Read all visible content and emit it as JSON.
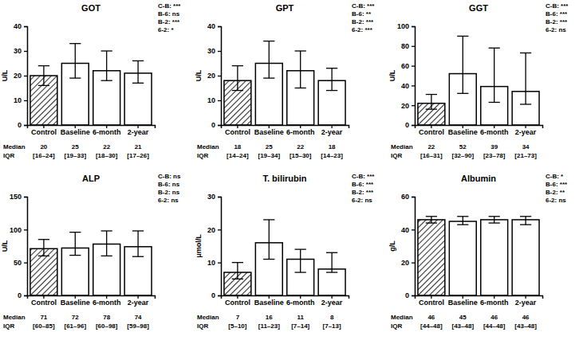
{
  "chart_data": [
    {
      "type": "bar",
      "title": "GOT",
      "y_label": "U/L",
      "categories": [
        "Control",
        "Baseline",
        "6-month",
        "2-year"
      ],
      "values": [
        20,
        25,
        22,
        21
      ],
      "iqr_low": [
        16,
        19,
        18,
        17
      ],
      "iqr_high": [
        24,
        33,
        30,
        26
      ],
      "iqr_labels": [
        "[16–24]",
        "[19–33]",
        "[18–30]",
        "[17–26]"
      ],
      "median_label": "Median",
      "iqr_label": "IQR",
      "annotations": [
        "C-B: ***",
        "B-6: ns",
        "B-2: ***",
        "6-2: *"
      ],
      "colors": [
        "#333333",
        "#ffffff",
        "#ffffff",
        "#ffffff"
      ],
      "ylim": [
        0,
        40
      ],
      "yticks": [
        0,
        10,
        20,
        30,
        40
      ]
    },
    {
      "type": "bar",
      "title": "GPT",
      "y_label": "U/L",
      "categories": [
        "Control",
        "Baseline",
        "6-month",
        "2-year"
      ],
      "values": [
        18,
        25,
        22,
        18
      ],
      "iqr_low": [
        14,
        19,
        15,
        14
      ],
      "iqr_high": [
        24,
        34,
        30,
        23
      ],
      "iqr_labels": [
        "[14–24]",
        "[19–34]",
        "[15–30]",
        "[14–23]"
      ],
      "median_label": "Median",
      "iqr_label": "IQR",
      "annotations": [
        "C-B: ***",
        "B-6: **",
        "B-2: ***",
        "6-2: ***"
      ],
      "colors": [
        "#333333",
        "#ffffff",
        "#ffffff",
        "#ffffff"
      ],
      "ylim": [
        0,
        40
      ],
      "yticks": [
        0,
        10,
        20,
        30,
        40
      ]
    },
    {
      "type": "bar",
      "title": "GGT",
      "y_label": "U/L",
      "categories": [
        "Control",
        "Baseline",
        "6-month",
        "2-year"
      ],
      "values": [
        22,
        52,
        39,
        34
      ],
      "iqr_low": [
        16,
        32,
        23,
        21
      ],
      "iqr_high": [
        31,
        90,
        78,
        73
      ],
      "iqr_labels": [
        "[16–31]",
        "[32–90]",
        "[23–78]",
        "[21–73]"
      ],
      "median_label": "Median",
      "iqr_label": "IQR",
      "annotations": [
        "C-B: ***",
        "B-6: ***",
        "B-2: ***",
        "6-2: ns"
      ],
      "colors": [
        "#333333",
        "#ffffff",
        "#ffffff",
        "#ffffff"
      ],
      "ylim": [
        0,
        100
      ],
      "yticks": [
        0,
        20,
        40,
        60,
        80,
        100
      ]
    },
    {
      "type": "bar",
      "title": "ALP",
      "y_label": "U/L",
      "categories": [
        "Control",
        "Baseline",
        "6-month",
        "2-year"
      ],
      "values": [
        71,
        72,
        78,
        74
      ],
      "iqr_low": [
        60,
        61,
        60,
        59
      ],
      "iqr_high": [
        85,
        96,
        98,
        98
      ],
      "iqr_labels": [
        "[60–85]",
        "[61–96]",
        "[60–98]",
        "[59–98]"
      ],
      "median_label": "Median",
      "iqr_label": "IQR",
      "annotations": [
        "C-B: ns",
        "B-6: ns",
        "B-2: ns",
        "6-2: ns"
      ],
      "colors": [
        "#333333",
        "#ffffff",
        "#ffffff",
        "#ffffff"
      ],
      "ylim": [
        0,
        150
      ],
      "yticks": [
        0,
        50,
        100,
        150
      ]
    },
    {
      "type": "bar",
      "title": "T. bilirubin",
      "y_label": "μmol/L",
      "categories": [
        "Control",
        "Baseline",
        "6-month",
        "2-year"
      ],
      "values": [
        7,
        16,
        11,
        8
      ],
      "iqr_low": [
        5,
        11,
        7,
        7
      ],
      "iqr_high": [
        10,
        23,
        14,
        13
      ],
      "iqr_labels": [
        "[5–10]",
        "[11–23]",
        "[7–14]",
        "[7–13]"
      ],
      "median_label": "Median",
      "iqr_label": "IQR",
      "annotations": [
        "C-B: ***",
        "B-6: ***",
        "B-2: ***",
        "6-2: ns"
      ],
      "colors": [
        "#333333",
        "#ffffff",
        "#ffffff",
        "#ffffff"
      ],
      "ylim": [
        0,
        30
      ],
      "yticks": [
        0,
        10,
        20,
        30
      ]
    },
    {
      "type": "bar",
      "title": "Albumin",
      "y_label": "g/L",
      "categories": [
        "Control",
        "Baseline",
        "6-month",
        "2-year"
      ],
      "values": [
        46,
        45,
        46,
        46
      ],
      "iqr_low": [
        44,
        43,
        44,
        43
      ],
      "iqr_high": [
        48,
        48,
        48,
        48
      ],
      "iqr_labels": [
        "[44–48]",
        "[43–48]",
        "[44–48]",
        "[43–48]"
      ],
      "median_label": "Median",
      "iqr_label": "IQR",
      "annotations": [
        "C-B: *",
        "B-6: ***",
        "B-2: **",
        "6-2: ns"
      ],
      "colors": [
        "#333333",
        "#ffffff",
        "#ffffff",
        "#ffffff"
      ],
      "ylim": [
        0,
        60
      ],
      "yticks": [
        0,
        20,
        40,
        60
      ]
    }
  ]
}
